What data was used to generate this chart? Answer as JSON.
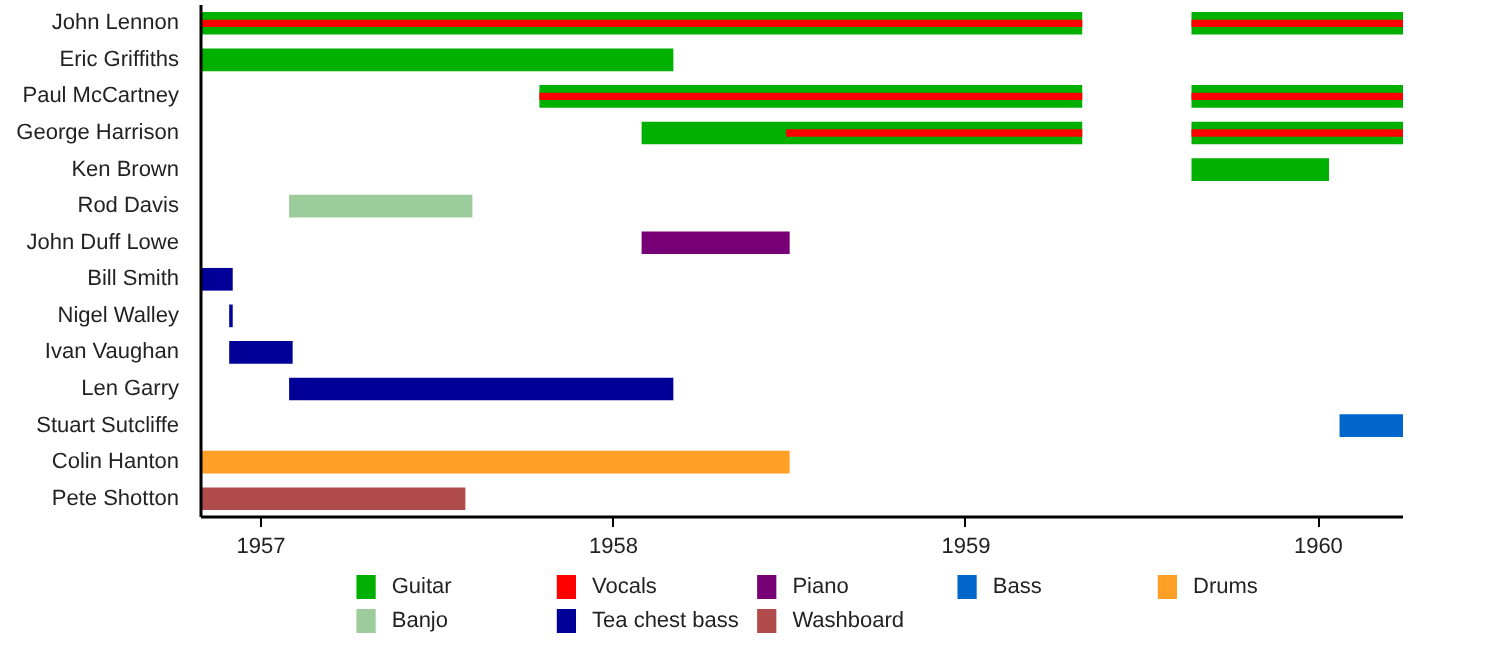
{
  "chart_data": {
    "type": "bar",
    "orientation": "horizontal",
    "categories": [
      "John Lennon",
      "Eric Griffiths",
      "Paul McCartney",
      "George Harrison",
      "Ken Brown",
      "Rod Davis",
      "John Duff Lowe",
      "Bill Smith",
      "Nigel Walley",
      "Ivan Vaughan",
      "Len Garry",
      "Stuart Sutcliffe",
      "Colin Hanton",
      "Pete Shotton"
    ],
    "series": [
      {
        "name": "Guitar",
        "color": "#00b000",
        "base": [
          1956.83,
          1956.83,
          1957.79,
          1958.08,
          1959.64,
          null,
          null,
          null,
          null,
          null,
          null,
          null,
          null,
          null
        ],
        "values": [
          2.5,
          1.34,
          1.54,
          1.25,
          0.39,
          null,
          null,
          null,
          null,
          null,
          null,
          null,
          null,
          null
        ]
      },
      {
        "color": "#00b000",
        "base": [
          1959.64,
          null,
          1959.64,
          1959.64,
          null,
          null,
          null,
          null,
          null,
          null,
          null,
          null,
          null,
          null
        ],
        "values": [
          0.6,
          null,
          0.6,
          0.6,
          null,
          null,
          null,
          null,
          null,
          null,
          null,
          null,
          null,
          null
        ]
      },
      {
        "name": "Vocals",
        "color": "#ff0000",
        "base": [
          1956.83,
          null,
          1957.79,
          1958.49,
          null,
          null,
          null,
          null,
          null,
          null,
          null,
          null,
          null,
          null
        ],
        "values": [
          2.5,
          null,
          1.54,
          0.84,
          null,
          null,
          null,
          null,
          null,
          null,
          null,
          null,
          null,
          null
        ]
      },
      {
        "color": "#ff0000",
        "base": [
          1959.64,
          null,
          1959.64,
          1959.64,
          null,
          null,
          null,
          null,
          null,
          null,
          null,
          null,
          null,
          null
        ],
        "values": [
          0.6,
          null,
          0.6,
          0.6,
          null,
          null,
          null,
          null,
          null,
          null,
          null,
          null,
          null,
          null
        ]
      },
      {
        "name": "Piano",
        "color": "#770077",
        "base": [
          null,
          null,
          null,
          null,
          null,
          null,
          1958.08,
          null,
          null,
          null,
          null,
          null,
          null,
          null
        ],
        "values": [
          null,
          null,
          null,
          null,
          null,
          null,
          0.42,
          null,
          null,
          null,
          null,
          null,
          null,
          null
        ]
      },
      {
        "name": "Bass",
        "color": "#0066cc",
        "base": [
          null,
          null,
          null,
          null,
          null,
          null,
          null,
          null,
          null,
          null,
          null,
          1960.06,
          null,
          null
        ],
        "values": [
          null,
          null,
          null,
          null,
          null,
          null,
          null,
          null,
          null,
          null,
          null,
          0.18,
          null,
          null
        ]
      },
      {
        "name": "Drums",
        "color": "#ff9f26",
        "base": [
          null,
          null,
          null,
          null,
          null,
          null,
          null,
          null,
          null,
          null,
          null,
          null,
          1956.83,
          null
        ],
        "values": [
          null,
          null,
          null,
          null,
          null,
          null,
          null,
          null,
          null,
          null,
          null,
          null,
          1.67,
          null
        ]
      },
      {
        "name": "Banjo",
        "color": "#9ccc9c",
        "base": [
          null,
          null,
          null,
          null,
          null,
          1957.08,
          null,
          null,
          null,
          null,
          null,
          null,
          null,
          null
        ],
        "values": [
          null,
          null,
          null,
          null,
          null,
          0.52,
          null,
          null,
          null,
          null,
          null,
          null,
          null,
          null
        ]
      },
      {
        "name": "Tea chest bass",
        "color": "#000099",
        "base": [
          null,
          null,
          null,
          null,
          null,
          null,
          null,
          1956.83,
          1956.91,
          1956.91,
          1957.08,
          null,
          null,
          null
        ],
        "values": [
          null,
          null,
          null,
          null,
          null,
          null,
          null,
          0.09,
          0.01,
          0.18,
          1.09,
          null,
          null,
          null
        ]
      },
      {
        "name": "Washboard",
        "color": "#b04c4c",
        "base": [
          null,
          null,
          null,
          null,
          null,
          null,
          null,
          null,
          null,
          null,
          null,
          null,
          null,
          1956.83
        ],
        "values": [
          null,
          null,
          null,
          null,
          null,
          null,
          null,
          null,
          null,
          null,
          null,
          null,
          null,
          0.75
        ]
      }
    ],
    "xlim": [
      1956.83,
      1960.24
    ],
    "xticks": [
      1957,
      1958,
      1959,
      1960
    ],
    "grid": false,
    "legend": "bottom"
  }
}
